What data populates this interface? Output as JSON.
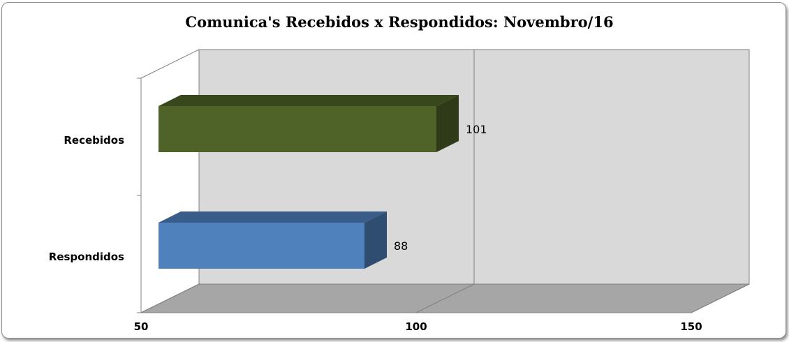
{
  "chart_data": {
    "type": "bar",
    "orientation": "horizontal",
    "style": "3d",
    "title": "Comunica's Recebidos x Respondidos: Novembro/16",
    "categories": [
      "Recebidos",
      "Respondidos"
    ],
    "values": [
      101,
      88
    ],
    "data_labels": [
      "101",
      "88"
    ],
    "xlim": [
      50,
      150
    ],
    "x_ticks": [
      "50",
      "100",
      "150"
    ],
    "grid": true,
    "legend": "none",
    "colors": {
      "Recebidos": "#4f6228",
      "Respondidos": "#4f81bd",
      "wall": "#d9d9d9",
      "floor": "#a6a6a6"
    }
  }
}
